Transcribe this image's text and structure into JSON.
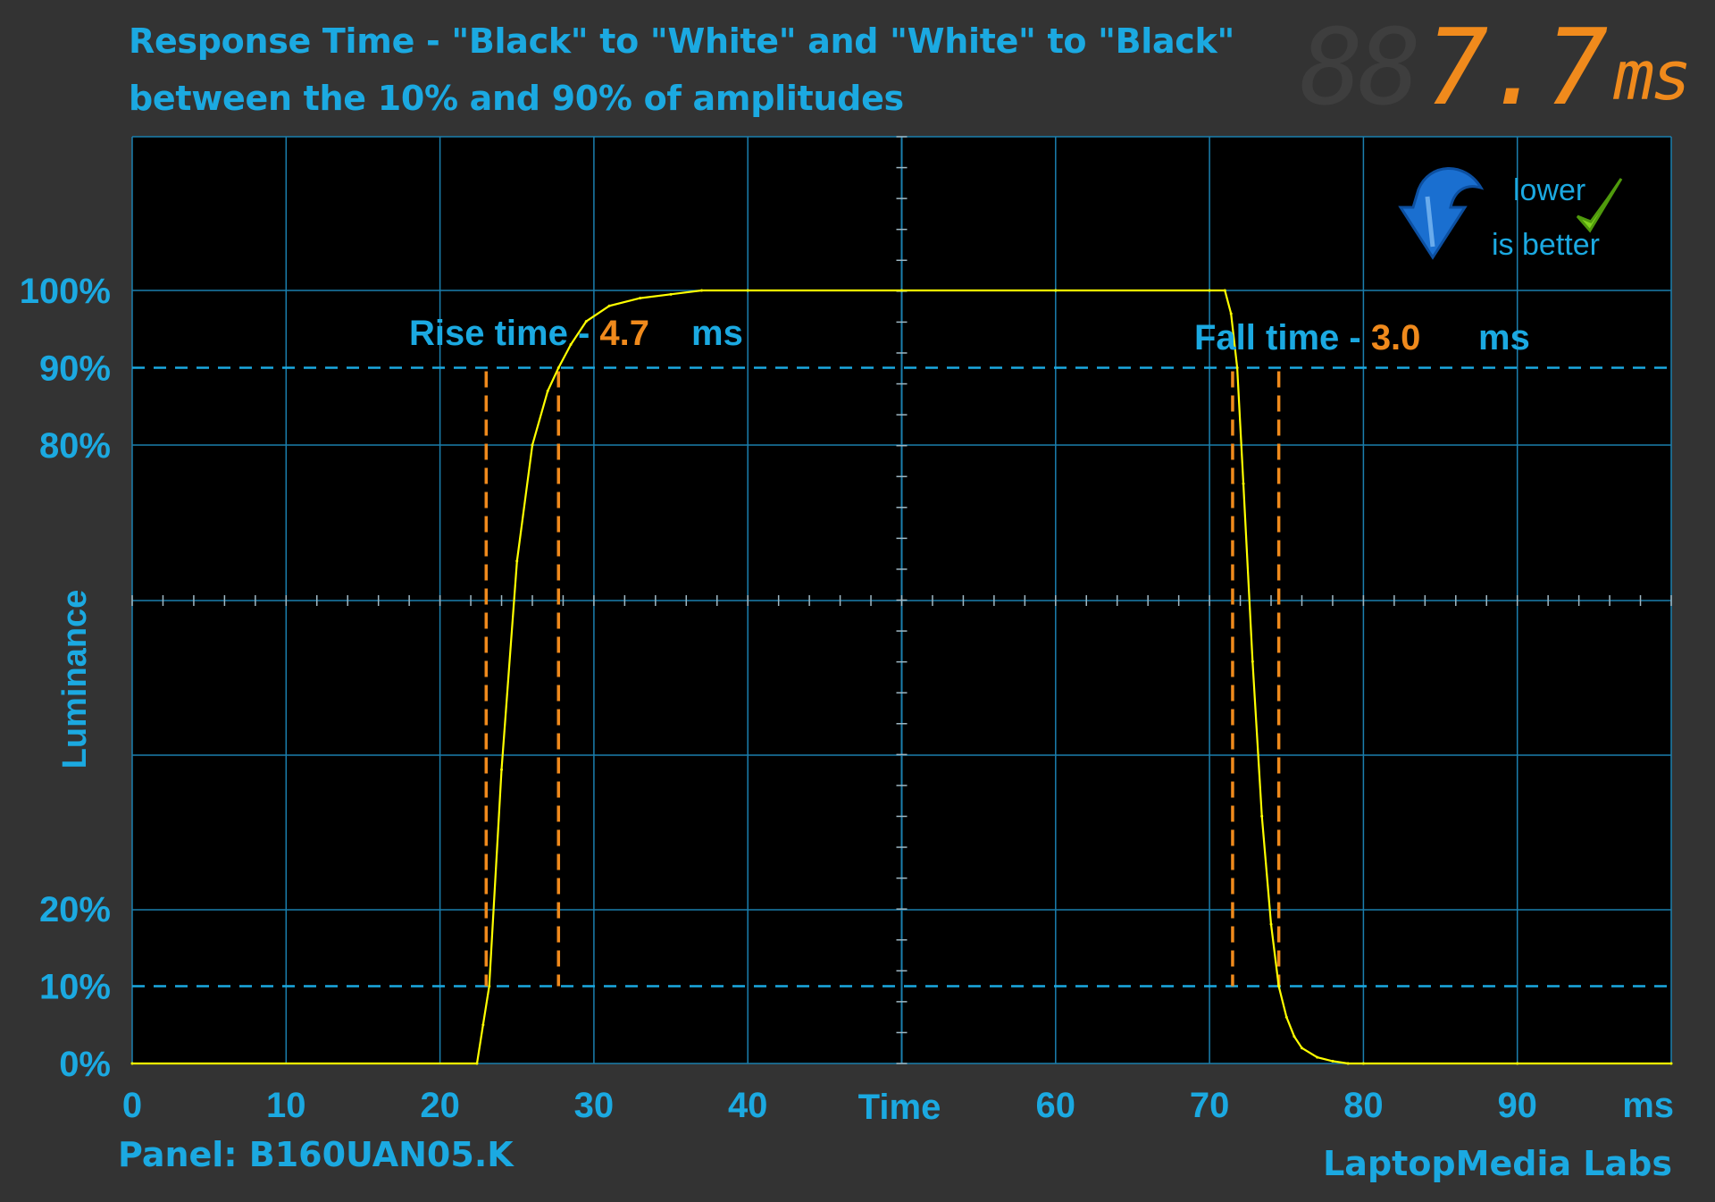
{
  "title_line1": "Response Time - \"Black\" to \"White\" and \"White\" to \"Black\"",
  "title_line2": "between the 10% and 90% of amplitudes",
  "result": {
    "ghost_digits": "88",
    "value": "7.7",
    "unit": "ms"
  },
  "badge": {
    "line1": "lower",
    "line2": "is better"
  },
  "panel_text": "Panel: B160UAN05.K",
  "lab_text": "LaptopMedia Labs",
  "colors": {
    "accent": "#1ba9e1",
    "signal": "#ffff00",
    "marker": "#f08a1c",
    "background": "#333333",
    "plot_bg": "#000000"
  },
  "chart_data": {
    "type": "line",
    "xlabel": "Time",
    "x_unit": "ms",
    "ylabel": "Luminance",
    "xlim": [
      0,
      100
    ],
    "ylim": [
      0,
      100
    ],
    "x_ticks": [
      0,
      10,
      20,
      30,
      40,
      60,
      70,
      80,
      90
    ],
    "y_tick_labels": [
      {
        "value": 100,
        "label": "100%"
      },
      {
        "value": 90,
        "label": "90%"
      },
      {
        "value": 80,
        "label": "80%"
      },
      {
        "value": 20,
        "label": "20%"
      },
      {
        "value": 10,
        "label": "10%"
      },
      {
        "value": 0,
        "label": "0%"
      }
    ],
    "grid": true,
    "threshold_lines": [
      90,
      10
    ],
    "series": [
      {
        "x": [
          0,
          22.4,
          22.8,
          23.2,
          24.0,
          25.0,
          26.0,
          27.0,
          27.7,
          28.5,
          29.5,
          31,
          33,
          35,
          37,
          40,
          50,
          60,
          70,
          71.0,
          71.4,
          71.8,
          72.2,
          72.8,
          73.4,
          74.0,
          74.5,
          75.0,
          75.5,
          76,
          77,
          78,
          79,
          80,
          90,
          100
        ],
        "y": [
          0,
          0,
          5,
          10,
          38,
          65,
          80,
          87,
          90,
          93,
          96,
          98,
          99,
          99.5,
          100,
          100,
          100,
          100,
          100,
          100,
          97,
          90,
          75,
          52,
          32,
          18,
          10,
          6,
          3.5,
          2,
          0.8,
          0.3,
          0,
          0,
          0,
          0
        ]
      }
    ],
    "rise": {
      "label": "Rise time - ",
      "value": "4.7",
      "unit": "ms",
      "start": 23.0,
      "end": 27.7
    },
    "fall": {
      "label": "Fall time - ",
      "value": "3.0",
      "unit": "ms",
      "start": 71.5,
      "end": 74.5
    }
  }
}
